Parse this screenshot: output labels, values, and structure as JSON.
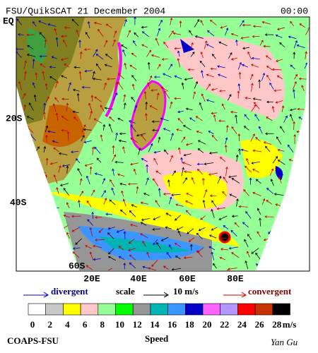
{
  "header": {
    "title": "FSU/QuikSCAT 21 December 2004",
    "time": "00:00"
  },
  "map": {
    "lat_labels": [
      "EQ",
      "20S",
      "40S",
      "60S"
    ],
    "lon_labels": [
      "20E",
      "40E",
      "60E",
      "80E"
    ]
  },
  "legend": {
    "divergent": "divergent",
    "scale": "scale",
    "scale_value": "10 m/s",
    "convergent": "convergent"
  },
  "colorbar": {
    "labels": [
      0,
      2,
      4,
      6,
      8,
      10,
      12,
      14,
      16,
      18,
      20,
      22,
      24,
      26,
      28
    ],
    "unit": "m/s",
    "colors": [
      "#ffffff",
      "#c8c8c8",
      "#ffff00",
      "#ffc8c8",
      "#96ff96",
      "#00ff00",
      "#969696",
      "#00b4b4",
      "#3c96ff",
      "#0000c8",
      "#ff64ff",
      "#b496ff",
      "#ff0000",
      "#c83200",
      "#000000"
    ]
  },
  "footer": {
    "left": "COAPS-FSU",
    "center": "Speed",
    "right": "Yan Gu"
  }
}
